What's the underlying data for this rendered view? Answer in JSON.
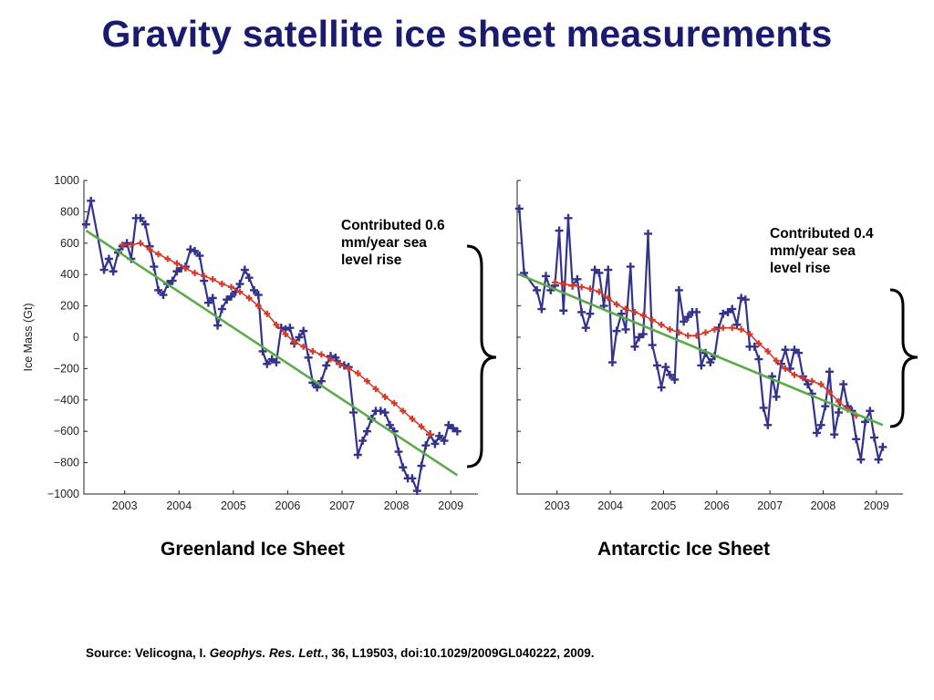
{
  "title": "Gravity satellite ice sheet measurements",
  "source": {
    "prefix": "Source: Velicogna, I. ",
    "journal": "Geophys. Res. Lett.",
    "suffix": ", 36, L19503, doi:10.1029/2009GL040222, 2009."
  },
  "colors": {
    "title": "#1a1a6e",
    "monthly": "#33338c",
    "smoothed": "#d63a2a",
    "trend": "#5cab4a"
  },
  "chart_data": [
    {
      "type": "line",
      "caption": "Greenland Ice Sheet",
      "annotation": [
        "Contributed 0.6",
        "mm/year sea",
        "level rise"
      ],
      "ylabel": "Ice Mass (Gt)",
      "xlim": [
        2002.25,
        2009.5
      ],
      "ylim": [
        -1000,
        1000
      ],
      "xticks": [
        2003,
        2004,
        2005,
        2006,
        2007,
        2008,
        2009
      ],
      "yticks": [
        1000,
        800,
        600,
        400,
        200,
        0,
        -200,
        -400,
        -600,
        -800,
        -1000
      ],
      "ytick_labels": [
        "1000",
        "800",
        "600",
        "400",
        "200",
        "0",
        "−200",
        "−400",
        "−600",
        "−800",
        "−1000"
      ],
      "series": [
        {
          "style": "monthly",
          "x": [
            2002.29,
            2002.38,
            2002.62,
            2002.71,
            2002.79,
            2002.88,
            2002.96,
            2003.04,
            2003.12,
            2003.21,
            2003.29,
            2003.38,
            2003.46,
            2003.54,
            2003.62,
            2003.71,
            2003.79,
            2003.88,
            2003.96,
            2004.04,
            2004.12,
            2004.21,
            2004.29,
            2004.38,
            2004.46,
            2004.54,
            2004.62,
            2004.71,
            2004.79,
            2004.88,
            2004.96,
            2005.04,
            2005.12,
            2005.21,
            2005.29,
            2005.38,
            2005.46,
            2005.54,
            2005.62,
            2005.71,
            2005.79,
            2005.88,
            2005.96,
            2006.04,
            2006.12,
            2006.21,
            2006.29,
            2006.38,
            2006.46,
            2006.54,
            2006.62,
            2006.71,
            2006.79,
            2006.88,
            2006.96,
            2007.04,
            2007.12,
            2007.21,
            2007.29,
            2007.38,
            2007.46,
            2007.54,
            2007.62,
            2007.71,
            2007.79,
            2007.88,
            2007.96,
            2008.04,
            2008.12,
            2008.21,
            2008.29,
            2008.38,
            2008.46,
            2008.54,
            2008.62,
            2008.71,
            2008.79,
            2008.88,
            2008.96,
            2009.04,
            2009.12
          ],
          "y": [
            720,
            870,
            430,
            500,
            420,
            540,
            580,
            600,
            500,
            760,
            760,
            720,
            580,
            450,
            300,
            270,
            340,
            360,
            420,
            440,
            450,
            560,
            550,
            520,
            360,
            220,
            250,
            75,
            180,
            240,
            260,
            290,
            340,
            430,
            380,
            300,
            270,
            -90,
            -170,
            -140,
            -160,
            60,
            50,
            60,
            -40,
            0,
            40,
            -130,
            -290,
            -320,
            -280,
            -180,
            -120,
            -130,
            -170,
            -180,
            -190,
            -480,
            -750,
            -660,
            -600,
            -520,
            -470,
            -470,
            -480,
            -560,
            -600,
            -730,
            -830,
            -900,
            -900,
            -980,
            -820,
            -690,
            -620,
            -680,
            -630,
            -660,
            -560,
            -580,
            -600
          ]
        },
        {
          "style": "smoothed",
          "x": [
            2002.96,
            2003.12,
            2003.29,
            2003.46,
            2003.62,
            2003.79,
            2003.96,
            2004.12,
            2004.29,
            2004.46,
            2004.62,
            2004.79,
            2004.96,
            2005.12,
            2005.29,
            2005.46,
            2005.62,
            2005.79,
            2005.96,
            2006.12,
            2006.29,
            2006.46,
            2006.62,
            2006.79,
            2006.96,
            2007.12,
            2007.29,
            2007.46,
            2007.62,
            2007.79,
            2007.96,
            2008.12,
            2008.29,
            2008.46,
            2008.62
          ],
          "y": [
            590,
            590,
            600,
            560,
            530,
            500,
            470,
            440,
            410,
            390,
            370,
            340,
            320,
            290,
            250,
            200,
            150,
            80,
            20,
            -30,
            -60,
            -90,
            -110,
            -140,
            -170,
            -200,
            -230,
            -280,
            -330,
            -380,
            -420,
            -470,
            -520,
            -570,
            -620
          ]
        },
        {
          "style": "trend",
          "x": [
            2002.29,
            2009.12
          ],
          "y": [
            680,
            -880
          ]
        }
      ]
    },
    {
      "type": "line",
      "caption": "Antarctic Ice Sheet",
      "annotation": [
        "Contributed 0.4",
        "mm/year sea",
        "level rise"
      ],
      "ylabel": "",
      "xlim": [
        2002.25,
        2009.5
      ],
      "ylim": [
        -1000,
        1000
      ],
      "xticks": [
        2003,
        2004,
        2005,
        2006,
        2007,
        2008,
        2009
      ],
      "yticks": [
        1000,
        800,
        600,
        400,
        200,
        0,
        -200,
        -400,
        -600,
        -800,
        -1000
      ],
      "ytick_labels": [],
      "series": [
        {
          "style": "monthly",
          "x": [
            2002.29,
            2002.38,
            2002.62,
            2002.71,
            2002.79,
            2002.88,
            2002.96,
            2003.04,
            2003.12,
            2003.21,
            2003.29,
            2003.38,
            2003.46,
            2003.54,
            2003.62,
            2003.71,
            2003.79,
            2003.88,
            2003.96,
            2004.04,
            2004.12,
            2004.21,
            2004.29,
            2004.38,
            2004.46,
            2004.54,
            2004.62,
            2004.71,
            2004.79,
            2004.88,
            2004.96,
            2005.04,
            2005.12,
            2005.21,
            2005.29,
            2005.38,
            2005.46,
            2005.54,
            2005.62,
            2005.71,
            2005.79,
            2005.88,
            2005.96,
            2006.04,
            2006.12,
            2006.21,
            2006.29,
            2006.38,
            2006.46,
            2006.54,
            2006.62,
            2006.71,
            2006.79,
            2006.88,
            2006.96,
            2007.04,
            2007.12,
            2007.21,
            2007.29,
            2007.38,
            2007.46,
            2007.54,
            2007.62,
            2007.71,
            2007.79,
            2007.88,
            2007.96,
            2008.04,
            2008.12,
            2008.21,
            2008.29,
            2008.38,
            2008.46,
            2008.54,
            2008.62,
            2008.71,
            2008.79,
            2008.88,
            2008.96,
            2009.04,
            2009.12
          ],
          "y": [
            820,
            410,
            300,
            180,
            390,
            300,
            330,
            680,
            170,
            760,
            330,
            370,
            160,
            60,
            150,
            430,
            410,
            200,
            430,
            -160,
            40,
            150,
            50,
            450,
            -60,
            0,
            20,
            660,
            -50,
            -180,
            -320,
            -190,
            -240,
            -270,
            300,
            100,
            130,
            160,
            160,
            -180,
            -100,
            -160,
            -120,
            60,
            150,
            160,
            180,
            80,
            250,
            240,
            -60,
            -60,
            -140,
            -450,
            -560,
            -250,
            -380,
            -170,
            -80,
            -200,
            -80,
            -100,
            -250,
            -300,
            -360,
            -610,
            -560,
            -440,
            -220,
            -620,
            -480,
            -300,
            -440,
            -470,
            -650,
            -780,
            -540,
            -470,
            -640,
            -780,
            -700
          ]
        },
        {
          "style": "smoothed",
          "x": [
            2002.96,
            2003.12,
            2003.29,
            2003.46,
            2003.62,
            2003.79,
            2003.96,
            2004.12,
            2004.29,
            2004.46,
            2004.62,
            2004.79,
            2004.96,
            2005.12,
            2005.29,
            2005.46,
            2005.62,
            2005.79,
            2005.96,
            2006.12,
            2006.29,
            2006.46,
            2006.62,
            2006.79,
            2006.96,
            2007.12,
            2007.29,
            2007.46,
            2007.62,
            2007.79,
            2007.96,
            2008.12,
            2008.29,
            2008.46,
            2008.62
          ],
          "y": [
            350,
            340,
            330,
            320,
            310,
            290,
            250,
            210,
            180,
            160,
            140,
            110,
            80,
            50,
            30,
            10,
            10,
            30,
            50,
            60,
            60,
            50,
            20,
            -40,
            -90,
            -150,
            -200,
            -240,
            -260,
            -280,
            -300,
            -350,
            -410,
            -460,
            -500
          ]
        },
        {
          "style": "trend",
          "x": [
            2002.29,
            2009.12
          ],
          "y": [
            400,
            -560
          ]
        }
      ]
    }
  ]
}
